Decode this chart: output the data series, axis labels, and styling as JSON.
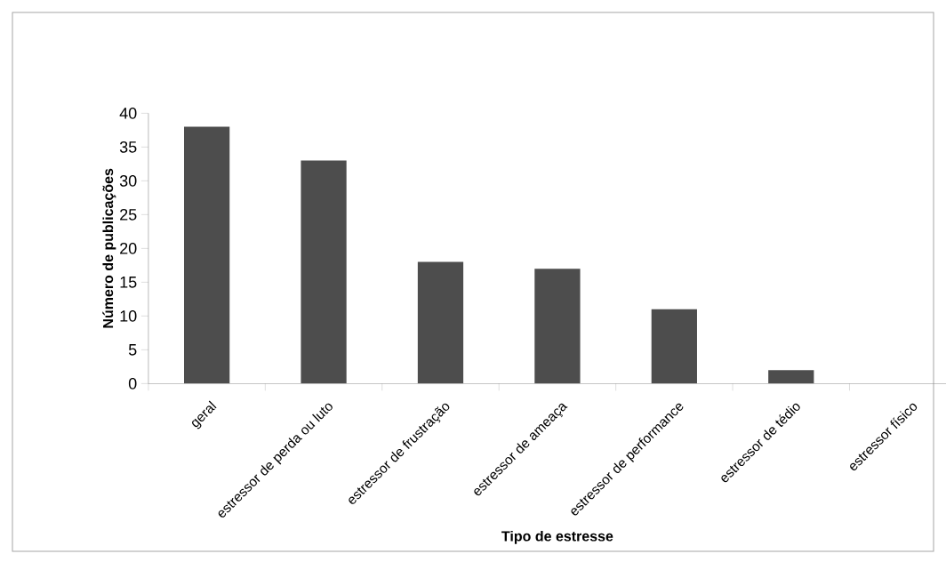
{
  "chart_data": {
    "type": "bar",
    "xlabel": "Tipo de estresse",
    "ylabel": "Número de publicações",
    "categories": [
      "geral",
      "estressor de perda ou luto",
      "estressor de frustração",
      "estressor de ameaça",
      "estressor de performance",
      "estressor de tédio",
      "estressor físico"
    ],
    "values": [
      38,
      33,
      18,
      17,
      11,
      2,
      0
    ],
    "color": "#4d4d4d",
    "ylim": [
      0,
      40
    ],
    "yticks": [
      0,
      5,
      10,
      15,
      20,
      25,
      30,
      35,
      40
    ]
  }
}
